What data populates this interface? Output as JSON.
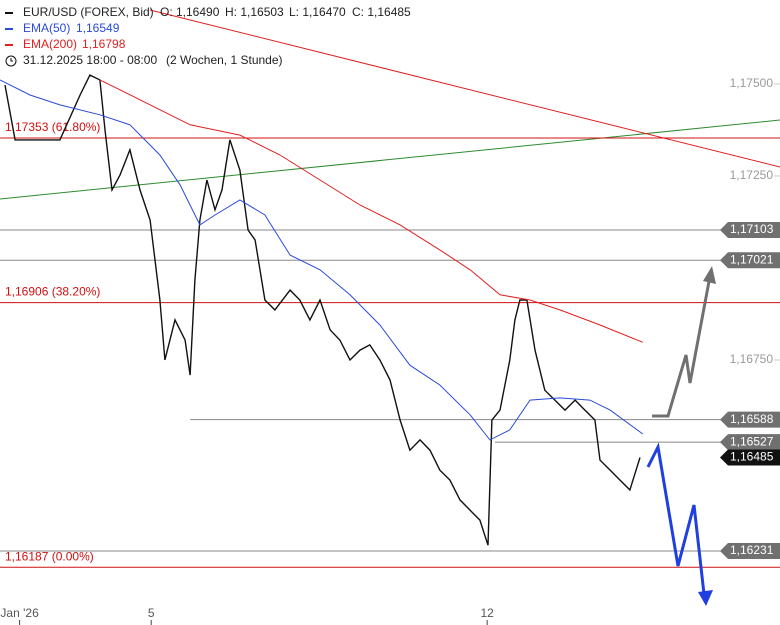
{
  "header": {
    "symbol": "EUR/USD (FOREX, Bid)",
    "ohlc": [
      "O: 1,16490",
      "H: 1,16503",
      "L: 1,16470",
      "C: 1,16485"
    ],
    "legend": [
      {
        "name": "EMA(50)",
        "value": "1,16549"
      },
      {
        "name": "EMA(200)",
        "value": "1,16798"
      }
    ],
    "period": "31.12.2025 18:00 - 08:00",
    "range": "(2 Wochen, 1 Stunde)"
  },
  "chart_data": {
    "type": "line",
    "xlim": [
      0,
      278.6
    ],
    "ylim": [
      1.16098,
      1.17728
    ],
    "xticks": [
      {
        "value": 7,
        "label": "Jan '26"
      },
      {
        "value": 54,
        "label": "5"
      },
      {
        "value": 174,
        "label": "12"
      }
    ],
    "yticks": [
      {
        "value": 1.175,
        "label": "1,17500"
      },
      {
        "value": 1.1725,
        "label": "1,17250"
      },
      {
        "value": 1.1675,
        "label": "1,16750"
      }
    ],
    "series": [
      {
        "name": "EUR/USD (FOREX, Bid)",
        "color": "#111111",
        "x": [
          1.8,
          5.4,
          21.4,
          28.6,
          32.1,
          35.7,
          37.5,
          40,
          42.9,
          46.4,
          50,
          53.6,
          57.1,
          58.9,
          62.5,
          66.1,
          67.9,
          69.6,
          71.4,
          73.9,
          76.8,
          79.3,
          82.1,
          85.7,
          88.6,
          91.1,
          94.6,
          98.2,
          103.6,
          107.1,
          110.7,
          114.3,
          117.9,
          121.4,
          125,
          128.6,
          132.1,
          135.7,
          139.3,
          142.9,
          146.4,
          150,
          153.6,
          157.1,
          160.7,
          164.3,
          167.9,
          171.4,
          174.3,
          175.7,
          178.6,
          182.1,
          183.9,
          185.7,
          188.2,
          191.1,
          194.6,
          198.2,
          201.8,
          205.4,
          208.9,
          212.5,
          214.3,
          217.9,
          221.4,
          225,
          228.6
        ],
        "values": [
          1.17497,
          1.17348,
          1.17348,
          1.1747,
          1.17524,
          1.17511,
          1.17375,
          1.17212,
          1.17253,
          1.17321,
          1.17212,
          1.1713,
          1.16913,
          1.1675,
          1.16859,
          1.16804,
          1.16709,
          1.16967,
          1.1713,
          1.17239,
          1.17158,
          1.17212,
          1.17348,
          1.17266,
          1.17103,
          1.17076,
          1.16913,
          1.16886,
          1.1694,
          1.16913,
          1.16859,
          1.16913,
          1.16832,
          1.16804,
          1.1675,
          1.16777,
          1.16791,
          1.1675,
          1.16696,
          1.16587,
          1.16505,
          1.16533,
          1.16505,
          1.16451,
          1.16424,
          1.1637,
          1.16342,
          1.16315,
          1.16247,
          1.16587,
          1.16614,
          1.1675,
          1.16859,
          1.16913,
          1.16913,
          1.16777,
          1.16668,
          1.16641,
          1.16614,
          1.16641,
          1.16614,
          1.16587,
          1.16478,
          1.16451,
          1.16424,
          1.16397,
          1.16485
        ]
      },
      {
        "name": "EMA(50)",
        "color": "#2a4bd7",
        "x": [
          0,
          10.7,
          21.4,
          35.7,
          46.4,
          57.1,
          64.3,
          71.4,
          76.8,
          85.7,
          94.6,
          103.6,
          114.3,
          125,
          135.7,
          146.4,
          157.1,
          167.9,
          175,
          182.1,
          189.3,
          200,
          210.7,
          217.9,
          229.6
        ],
        "values": [
          1.17511,
          1.1747,
          1.17443,
          1.17416,
          1.17389,
          1.17307,
          1.17226,
          1.17117,
          1.17144,
          1.17185,
          1.17144,
          1.17035,
          1.16995,
          1.16927,
          1.16845,
          1.16736,
          1.16682,
          1.16601,
          1.16533,
          1.1656,
          1.16641,
          1.16647,
          1.16641,
          1.16614,
          1.16549
        ]
      },
      {
        "name": "EMA(200)",
        "color": "#e02020",
        "x": [
          35.7,
          50,
          67.9,
          85.7,
          100,
          114.3,
          128.6,
          142.9,
          157.1,
          167.9,
          178.6,
          189.3,
          200,
          214.3,
          229.6
        ],
        "values": [
          1.17511,
          1.17457,
          1.17389,
          1.17361,
          1.17307,
          1.17239,
          1.17171,
          1.17117,
          1.17049,
          1.16995,
          1.16927,
          1.16913,
          1.16886,
          1.16845,
          1.16798
        ]
      }
    ],
    "levels": [
      {
        "value": 1.17353,
        "label": "1,17353 (61.80%)",
        "color": "#d01010"
      },
      {
        "value": 1.16906,
        "label": "1,16906 (38.20%)",
        "color": "#d01010"
      },
      {
        "value": 1.16187,
        "label": "1,16187 (0.00%)",
        "color": "#d01010"
      }
    ],
    "price_tags": [
      {
        "value": 1.17103,
        "label": "1,17103",
        "color": "#707070",
        "x_start": 0
      },
      {
        "value": 1.17021,
        "label": "1,17021",
        "color": "#707070",
        "x_start": 0
      },
      {
        "value": 1.16588,
        "label": "1,16588",
        "color": "#707070",
        "x_start": 67.9
      },
      {
        "value": 1.16527,
        "label": "1,16527",
        "color": "#707070",
        "x_start": 176.8
      },
      {
        "value": 1.16485,
        "label": "1,16485",
        "color": "#111111"
      },
      {
        "value": 1.16231,
        "label": "1,16231",
        "color": "#707070",
        "x_start": 0
      }
    ]
  }
}
